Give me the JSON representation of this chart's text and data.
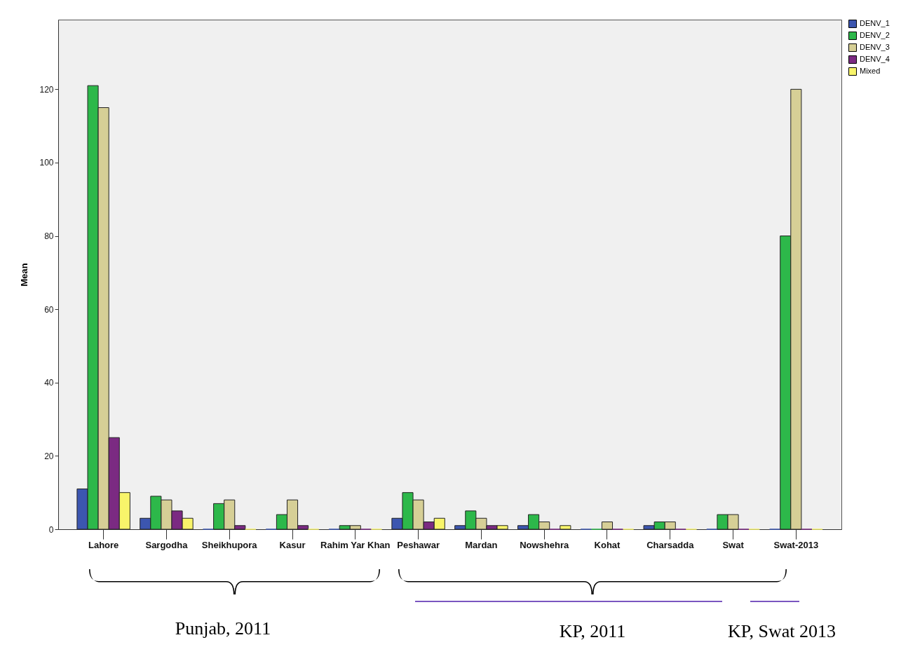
{
  "chart_data": {
    "type": "bar",
    "ylabel": "Mean",
    "categories": [
      "Lahore",
      "Sargodha",
      "Sheikhupora",
      "Kasur",
      "Rahim Yar Khan",
      "Peshawar",
      "Mardan",
      "Nowshehra",
      "Kohat",
      "Charsadda",
      "Swat",
      "Swat-2013"
    ],
    "series": [
      {
        "name": "DENV_1",
        "color": "#3c56b0",
        "values": [
          11,
          3,
          0,
          0,
          0,
          3,
          1,
          1,
          0,
          1,
          0,
          0
        ]
      },
      {
        "name": "DENV_2",
        "color": "#2db84a",
        "values": [
          121,
          9,
          7,
          4,
          1,
          10,
          5,
          4,
          0,
          2,
          4,
          80
        ]
      },
      {
        "name": "DENV_3",
        "color": "#d6cf96",
        "values": [
          115,
          8,
          8,
          8,
          1,
          8,
          3,
          2,
          2,
          2,
          4,
          120
        ]
      },
      {
        "name": "DENV_4",
        "color": "#7b2a82",
        "values": [
          25,
          5,
          1,
          1,
          0,
          2,
          1,
          0,
          0,
          0,
          0,
          0
        ]
      },
      {
        "name": "Mixed",
        "color": "#f8f46a",
        "values": [
          10,
          3,
          0,
          0,
          0,
          3,
          1,
          1,
          0,
          0,
          0,
          0
        ]
      }
    ],
    "ylim": [
      0,
      139
    ],
    "yticks": [
      0,
      20,
      40,
      60,
      80,
      100,
      120
    ],
    "grid": false,
    "legend": "top right",
    "annotations": [
      "Punjab, 2011",
      "KP, 2011",
      "KP, Swat 2013"
    ]
  }
}
